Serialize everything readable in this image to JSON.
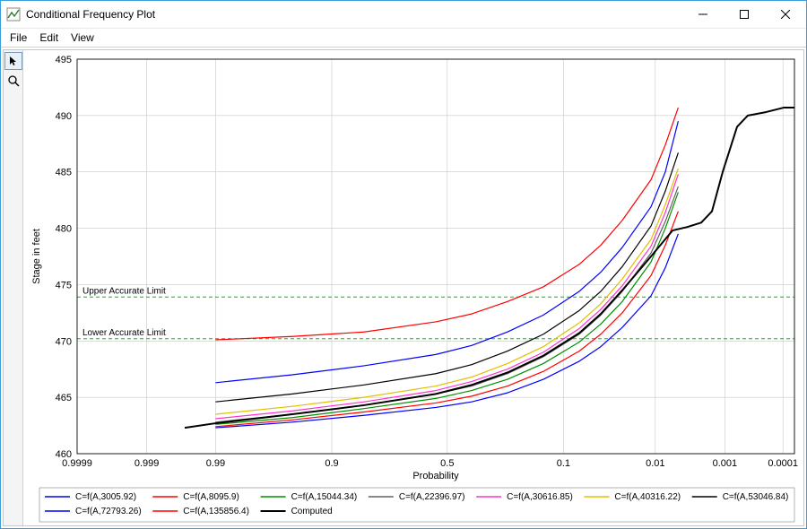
{
  "window": {
    "title": "Conditional Frequency Plot"
  },
  "menu": {
    "items": [
      "File",
      "Edit",
      "View"
    ]
  },
  "chart": {
    "ylabel": "Stage in feet",
    "xlabel": "Probability",
    "ylim": [
      460,
      495
    ],
    "ytick_step": 5,
    "x_ticks": [
      "0.9999",
      "0.999",
      "0.99",
      "0.9",
      "0.5",
      "0.1",
      "0.01",
      "0.001",
      "0.0001"
    ],
    "x_tick_pos": [
      0,
      0.097,
      0.193,
      0.355,
      0.516,
      0.678,
      0.806,
      0.903,
      0.984
    ],
    "grid_color": "#c8c8c8",
    "plot_bg": "#ffffff",
    "upper_limit": {
      "y": 473.9,
      "label": "Upper Accurate Limit",
      "color": "#00c000",
      "dash": "4 3"
    },
    "lower_limit": {
      "y": 470.2,
      "label": "Lower Accurate Limit",
      "color": "#00c000",
      "dash": "4 3"
    },
    "series": [
      {
        "label": "C=f(A,3005.92)",
        "color": "#0000ff",
        "width": 1.2,
        "pts": [
          [
            0.193,
            462.3
          ],
          [
            0.3,
            462.8
          ],
          [
            0.4,
            463.4
          ],
          [
            0.5,
            464.1
          ],
          [
            0.55,
            464.6
          ],
          [
            0.6,
            465.4
          ],
          [
            0.65,
            466.6
          ],
          [
            0.7,
            468.2
          ],
          [
            0.73,
            469.5
          ],
          [
            0.76,
            471.2
          ],
          [
            0.8,
            474.0
          ],
          [
            0.82,
            476.5
          ],
          [
            0.838,
            479.5
          ]
        ]
      },
      {
        "label": "C=f(A,8095.9)",
        "color": "#ff0000",
        "width": 1.2,
        "pts": [
          [
            0.193,
            462.4
          ],
          [
            0.3,
            463.0
          ],
          [
            0.4,
            463.7
          ],
          [
            0.5,
            464.5
          ],
          [
            0.55,
            465.1
          ],
          [
            0.6,
            466.0
          ],
          [
            0.65,
            467.3
          ],
          [
            0.7,
            469.1
          ],
          [
            0.73,
            470.6
          ],
          [
            0.76,
            472.5
          ],
          [
            0.8,
            475.8
          ],
          [
            0.82,
            478.5
          ],
          [
            0.838,
            481.5
          ]
        ]
      },
      {
        "label": "C=f(A,15044.34)",
        "color": "#009000",
        "width": 1.2,
        "pts": [
          [
            0.193,
            462.6
          ],
          [
            0.3,
            463.2
          ],
          [
            0.4,
            464.0
          ],
          [
            0.5,
            464.9
          ],
          [
            0.55,
            465.6
          ],
          [
            0.6,
            466.6
          ],
          [
            0.65,
            468.0
          ],
          [
            0.7,
            469.9
          ],
          [
            0.73,
            471.5
          ],
          [
            0.76,
            473.5
          ],
          [
            0.8,
            477.0
          ],
          [
            0.82,
            480.0
          ],
          [
            0.838,
            483.2
          ]
        ]
      },
      {
        "label": "C=f(A,22396.97)",
        "color": "#606060",
        "width": 1.2,
        "pts": [
          [
            0.193,
            462.8
          ],
          [
            0.3,
            463.5
          ],
          [
            0.4,
            464.3
          ],
          [
            0.5,
            465.3
          ],
          [
            0.55,
            466.0
          ],
          [
            0.6,
            467.1
          ],
          [
            0.65,
            468.6
          ],
          [
            0.7,
            470.6
          ],
          [
            0.73,
            472.3
          ],
          [
            0.76,
            474.4
          ],
          [
            0.8,
            477.8
          ],
          [
            0.82,
            480.6
          ],
          [
            0.838,
            483.7
          ]
        ]
      },
      {
        "label": "C=f(A,30616.85)",
        "color": "#ff33cc",
        "width": 1.2,
        "pts": [
          [
            0.193,
            463.1
          ],
          [
            0.3,
            463.8
          ],
          [
            0.4,
            464.6
          ],
          [
            0.5,
            465.6
          ],
          [
            0.55,
            466.4
          ],
          [
            0.6,
            467.5
          ],
          [
            0.65,
            469.0
          ],
          [
            0.7,
            471.1
          ],
          [
            0.73,
            472.8
          ],
          [
            0.76,
            474.9
          ],
          [
            0.8,
            478.4
          ],
          [
            0.82,
            481.4
          ],
          [
            0.838,
            484.8
          ]
        ]
      },
      {
        "label": "C=f(A,40316.22)",
        "color": "#e0c000",
        "width": 1.2,
        "pts": [
          [
            0.193,
            463.5
          ],
          [
            0.3,
            464.2
          ],
          [
            0.4,
            465.0
          ],
          [
            0.5,
            466.0
          ],
          [
            0.55,
            466.8
          ],
          [
            0.6,
            468.0
          ],
          [
            0.65,
            469.5
          ],
          [
            0.7,
            471.6
          ],
          [
            0.73,
            473.3
          ],
          [
            0.76,
            475.5
          ],
          [
            0.8,
            479.0
          ],
          [
            0.82,
            482.1
          ],
          [
            0.838,
            485.3
          ]
        ]
      },
      {
        "label": "C=f(A,53046.84)",
        "color": "#000000",
        "width": 1.2,
        "pts": [
          [
            0.193,
            464.6
          ],
          [
            0.3,
            465.3
          ],
          [
            0.4,
            466.1
          ],
          [
            0.5,
            467.1
          ],
          [
            0.55,
            467.9
          ],
          [
            0.6,
            469.1
          ],
          [
            0.65,
            470.6
          ],
          [
            0.7,
            472.7
          ],
          [
            0.73,
            474.4
          ],
          [
            0.76,
            476.6
          ],
          [
            0.8,
            480.2
          ],
          [
            0.82,
            483.3
          ],
          [
            0.838,
            486.7
          ]
        ]
      },
      {
        "label": "C=f(A,72793.26)",
        "color": "#0000ff",
        "width": 1.2,
        "pts": [
          [
            0.193,
            466.3
          ],
          [
            0.3,
            467.0
          ],
          [
            0.4,
            467.8
          ],
          [
            0.5,
            468.8
          ],
          [
            0.55,
            469.6
          ],
          [
            0.6,
            470.8
          ],
          [
            0.65,
            472.3
          ],
          [
            0.7,
            474.4
          ],
          [
            0.73,
            476.1
          ],
          [
            0.76,
            478.3
          ],
          [
            0.8,
            481.9
          ],
          [
            0.82,
            485.0
          ],
          [
            0.838,
            489.5
          ]
        ]
      },
      {
        "label": "C=f(A,135856.4)",
        "color": "#ff0000",
        "width": 1.2,
        "pts": [
          [
            0.193,
            470.1
          ],
          [
            0.3,
            470.4
          ],
          [
            0.4,
            470.8
          ],
          [
            0.5,
            471.7
          ],
          [
            0.55,
            472.4
          ],
          [
            0.6,
            473.5
          ],
          [
            0.65,
            474.8
          ],
          [
            0.7,
            476.8
          ],
          [
            0.73,
            478.5
          ],
          [
            0.76,
            480.7
          ],
          [
            0.8,
            484.3
          ],
          [
            0.82,
            487.4
          ],
          [
            0.838,
            490.7
          ]
        ]
      },
      {
        "label": "Computed",
        "color": "#000000",
        "width": 2.0,
        "pts": [
          [
            0.15,
            462.3
          ],
          [
            0.193,
            462.7
          ],
          [
            0.3,
            463.5
          ],
          [
            0.4,
            464.3
          ],
          [
            0.5,
            465.3
          ],
          [
            0.55,
            466.1
          ],
          [
            0.6,
            467.2
          ],
          [
            0.65,
            468.7
          ],
          [
            0.7,
            470.7
          ],
          [
            0.73,
            472.4
          ],
          [
            0.76,
            474.5
          ],
          [
            0.8,
            477.5
          ],
          [
            0.83,
            479.8
          ],
          [
            0.85,
            480.1
          ],
          [
            0.87,
            480.5
          ],
          [
            0.885,
            481.5
          ],
          [
            0.9,
            485.0
          ],
          [
            0.92,
            489.0
          ],
          [
            0.935,
            490.0
          ],
          [
            0.96,
            490.3
          ],
          [
            0.985,
            490.7
          ],
          [
            1.0,
            490.7
          ]
        ]
      }
    ],
    "legend_cols": 7
  }
}
